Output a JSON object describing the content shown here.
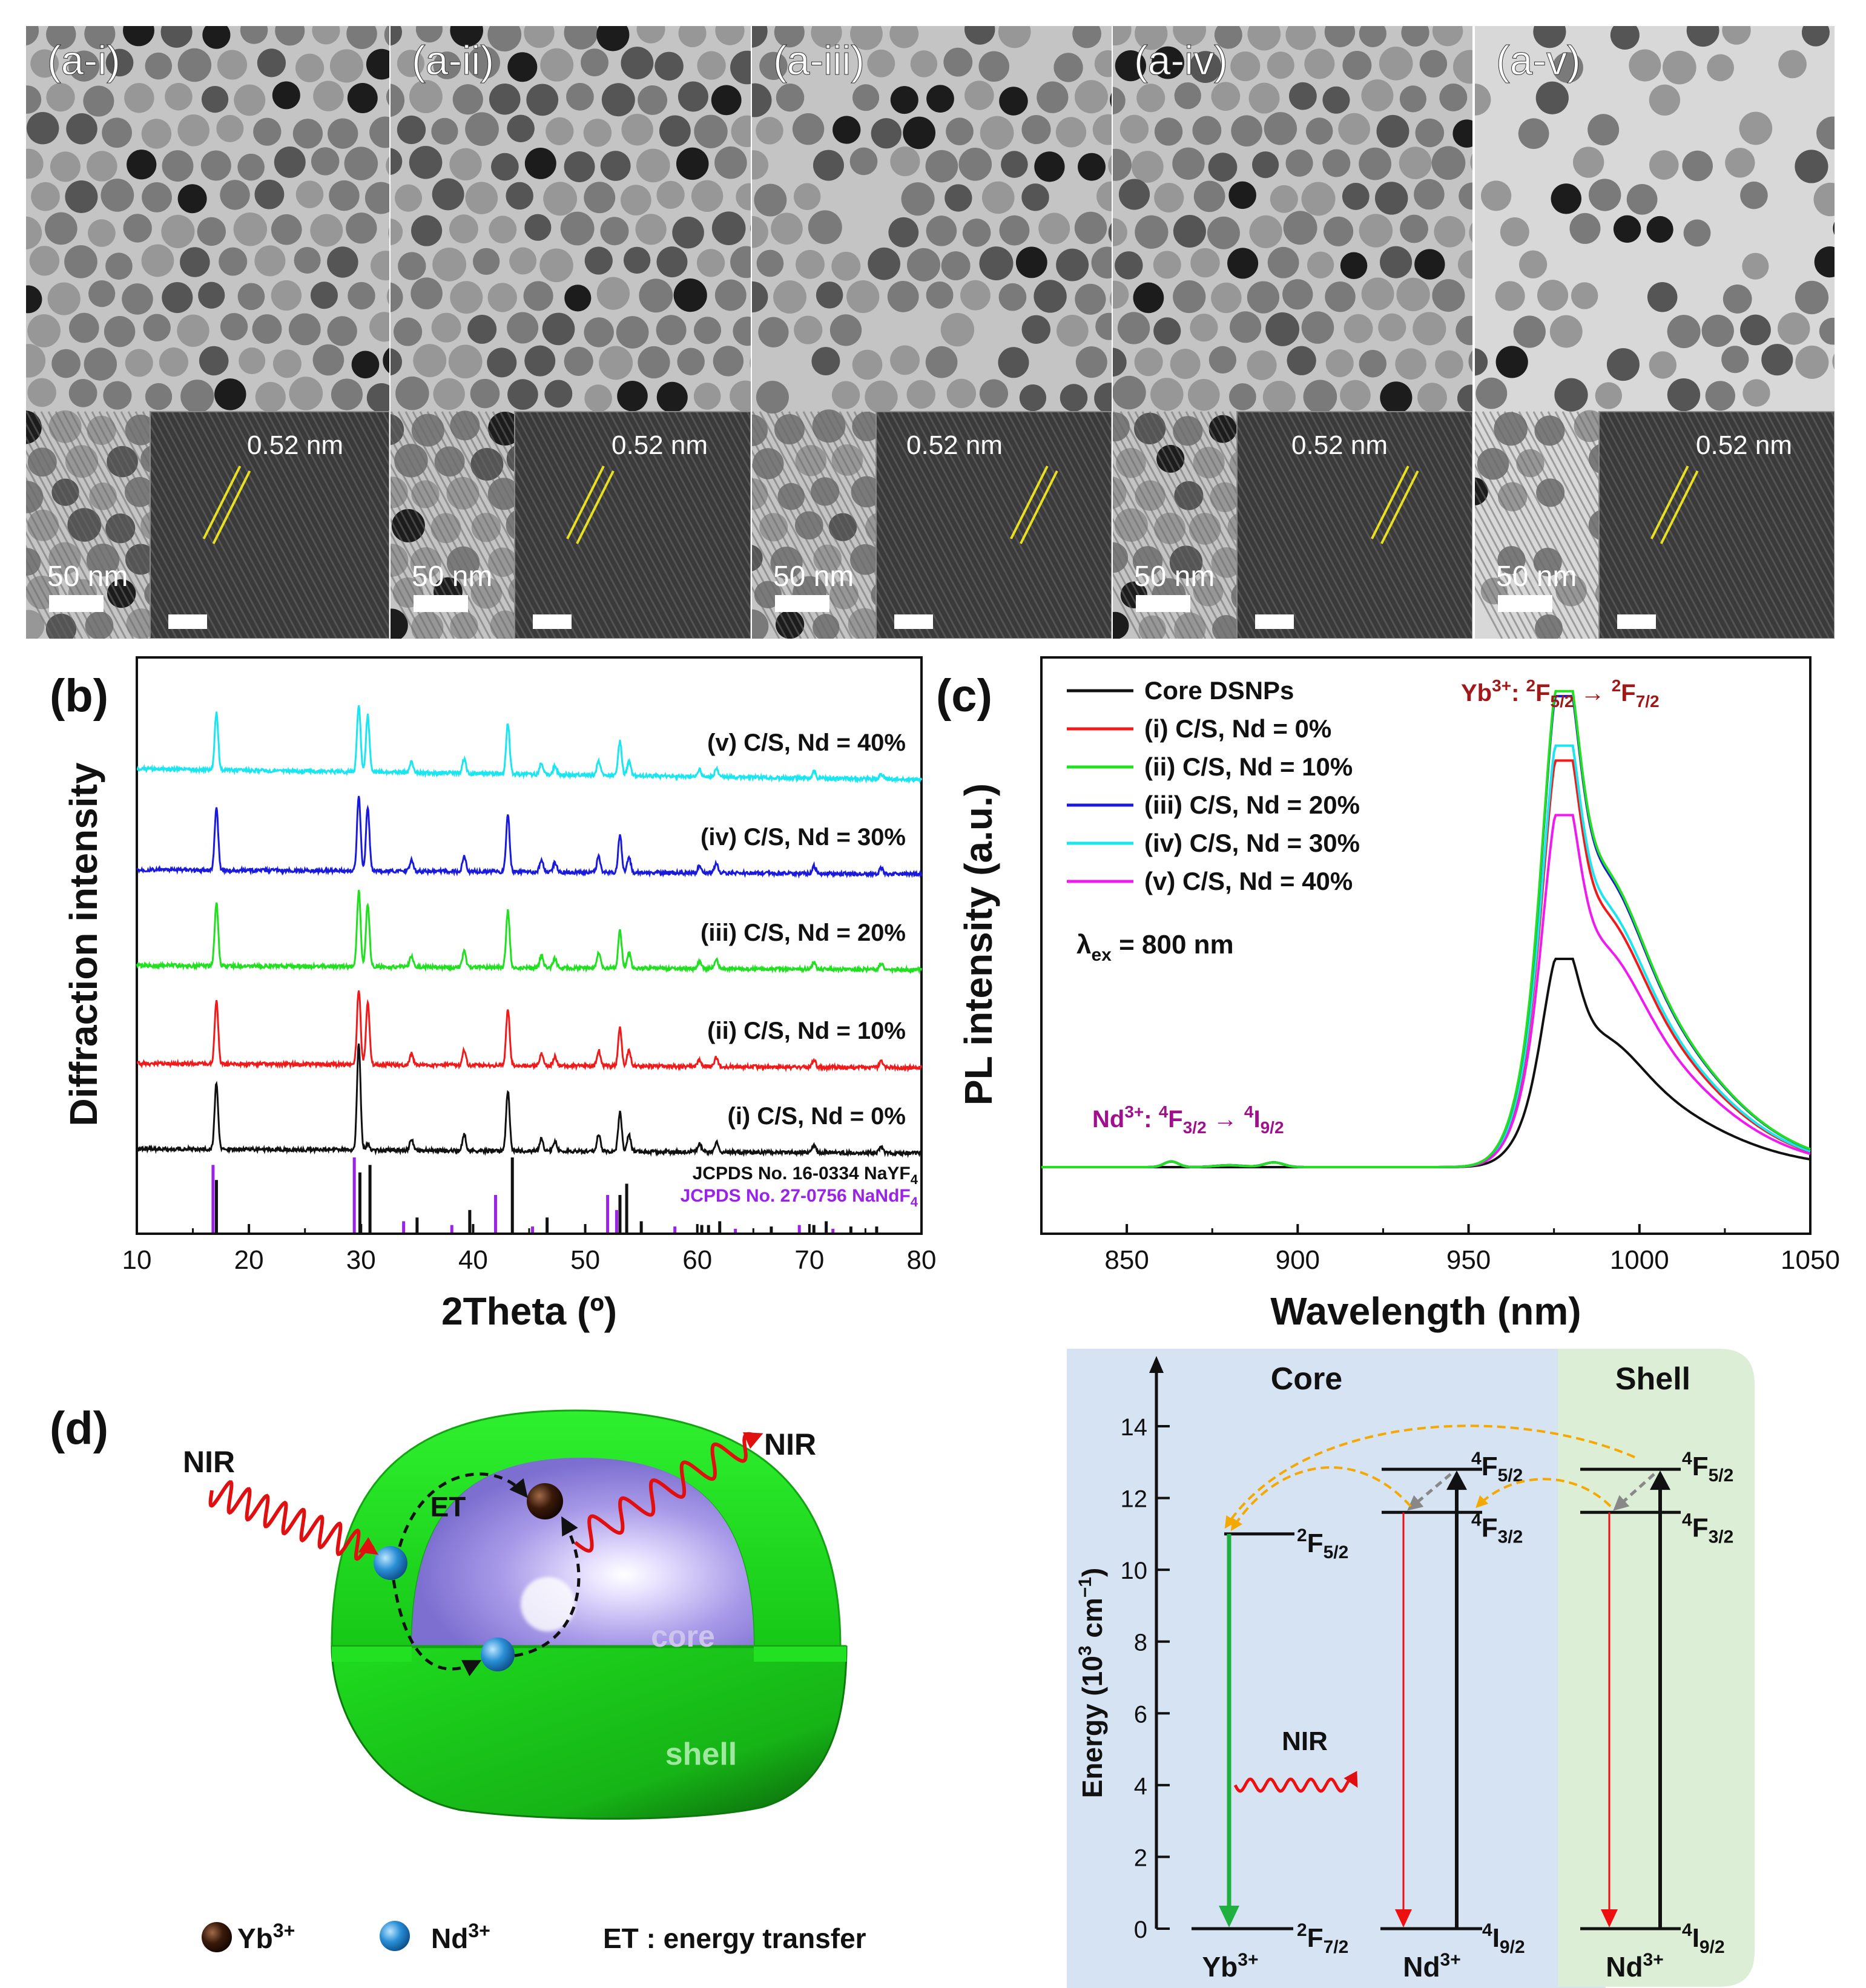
{
  "panel_a": {
    "images": [
      {
        "label": "(a-i)",
        "scale_bar": "50 nm",
        "inset_d": "0.52 nm"
      },
      {
        "label": "(a-ii)",
        "scale_bar": "50 nm",
        "inset_d": "0.52 nm"
      },
      {
        "label": "(a-iii)",
        "scale_bar": "50 nm",
        "inset_d": "0.52 nm"
      },
      {
        "label": "(a-iv)",
        "scale_bar": "50 nm",
        "inset_d": "0.52 nm"
      },
      {
        "label": "(a-v)",
        "scale_bar": "50 nm",
        "inset_d": "0.52 nm"
      }
    ]
  },
  "panel_b": {
    "label": "(b)",
    "chart_data": {
      "type": "line",
      "ylabel": "Diffraction intensity",
      "xlabel": "2Theta  (º)",
      "xlim": [
        10,
        80
      ],
      "xticks": [
        "10",
        "20",
        "30",
        "40",
        "50",
        "60",
        "70",
        "80"
      ],
      "series": [
        {
          "name": "(v) C/S, Nd = 40%",
          "color": "#19e6f0"
        },
        {
          "name": "(iv) C/S, Nd = 30%",
          "color": "#1a1adc"
        },
        {
          "name": "(iii) C/S, Nd = 20%",
          "color": "#20e020"
        },
        {
          "name": "(ii) C/S, Nd = 10%",
          "color": "#f01a1a"
        },
        {
          "name": "(i) C/S, Nd = 0%",
          "color": "#111111"
        }
      ],
      "peaks": [
        {
          "x": 17.1,
          "h": 1.0
        },
        {
          "x": 29.8,
          "h": 1.2
        },
        {
          "x": 30.6,
          "h": 1.0
        },
        {
          "x": 34.5,
          "h": 0.18
        },
        {
          "x": 39.2,
          "h": 0.25
        },
        {
          "x": 43.1,
          "h": 0.9
        },
        {
          "x": 46.1,
          "h": 0.2
        },
        {
          "x": 47.3,
          "h": 0.15
        },
        {
          "x": 51.2,
          "h": 0.25
        },
        {
          "x": 53.1,
          "h": 0.6
        },
        {
          "x": 53.9,
          "h": 0.25
        },
        {
          "x": 60.2,
          "h": 0.12
        },
        {
          "x": 61.7,
          "h": 0.15
        },
        {
          "x": 70.4,
          "h": 0.12
        },
        {
          "x": 76.4,
          "h": 0.1
        }
      ],
      "ref_naYF4": {
        "name": "JCPDS No. 16-0334 NaYF",
        "sub": "4",
        "color": "#111111",
        "x": [
          17.1,
          29.9,
          30.8,
          35.0,
          39.7,
          43.5,
          46.6,
          53.1,
          53.7,
          55.0,
          60.4,
          61.0,
          62.0,
          66.6,
          70.4,
          71.5,
          73.7,
          76.0
        ],
        "h": [
          0.7,
          0.8,
          0.9,
          0.2,
          0.3,
          1.0,
          0.2,
          0.5,
          0.65,
          0.15,
          0.1,
          0.1,
          0.15,
          0.08,
          0.1,
          0.15,
          0.08,
          0.08
        ]
      },
      "ref_naNdF4": {
        "name": "JCPDS No. 27-0756 NaNdF",
        "sub": "4",
        "color": "#9b22e8",
        "x": [
          16.8,
          29.4,
          33.8,
          38.1,
          42.0,
          45.3,
          52.0,
          52.8,
          58.0,
          63.4,
          69.1,
          72.1
        ],
        "h": [
          0.9,
          1.0,
          0.15,
          0.1,
          0.5,
          0.08,
          0.5,
          0.3,
          0.08,
          0.05,
          0.1,
          0.05
        ]
      }
    }
  },
  "panel_c": {
    "label": "(c)",
    "chart_data": {
      "type": "line",
      "ylabel": "PL intensity  (a.u.)",
      "xlabel": "Wavelength  (nm)",
      "xlim": [
        825,
        1050
      ],
      "xticks": [
        "850",
        "900",
        "950",
        "1000",
        "1050"
      ],
      "series": [
        {
          "name": "Core DSNPs",
          "color": "#111111",
          "peak": 0.42
        },
        {
          "name": "(i) C/S, Nd = 0%",
          "color": "#f01a1a",
          "peak": 0.82
        },
        {
          "name": "(ii) C/S, Nd = 10%",
          "color": "#20e020",
          "peak": 0.96
        },
        {
          "name": "(iii) C/S, Nd = 20%",
          "color": "#1a1adc",
          "peak": 0.95
        },
        {
          "name": "(iv) C/S, Nd = 30%",
          "color": "#19e6f0",
          "peak": 0.85
        },
        {
          "name": "(v) C/S, Nd = 40%",
          "color": "#f01af0",
          "peak": 0.71
        }
      ],
      "excitation": {
        "lambda": "λ",
        "sub": "ex",
        "text": " = 800 nm"
      },
      "ann_yb": {
        "ion": "Yb",
        "charge": "3+",
        "sep": ": ",
        "s1": "2",
        "t1": "F",
        "j1": "5/2",
        "arrow": " → ",
        "s2": "2",
        "t2": "F",
        "j2": "7/2",
        "color": "#a01818"
      },
      "ann_nd": {
        "ion": "Nd",
        "charge": "3+",
        "sep": ": ",
        "s1": "4",
        "t1": "F",
        "j1": "3/2",
        "arrow": " → ",
        "s2": "4",
        "t2": "I",
        "j2": "9/2",
        "color": "#a0108c"
      }
    }
  },
  "panel_d": {
    "label": "(d)",
    "nir_in": "NIR",
    "nir_out": "NIR",
    "et": "ET",
    "core": "core",
    "shell": "shell",
    "legend_yb": {
      "ion": "Yb",
      "charge": "3+"
    },
    "legend_nd": {
      "ion": "Nd",
      "charge": "3+"
    },
    "legend_et": "ET : energy transfer",
    "colors": {
      "shell": "#1fdc1f",
      "core": "#a89ae8",
      "yb": "#3a1a0a",
      "nd": "#2a8fd6"
    }
  },
  "energy": {
    "core_title": "Core",
    "shell_title": "Shell",
    "ylabel_main": "Energy (10",
    "ylabel_sup": "3",
    "ylabel_tail": " cm",
    "ylabel_sup2": "−1",
    "ylabel_end": ")",
    "ylim": [
      0,
      15
    ],
    "yticks": [
      "0",
      "2",
      "4",
      "6",
      "8",
      "10",
      "12",
      "14"
    ],
    "levels": {
      "yb_2F52": {
        "energy": 11.0,
        "s": "2",
        "t": "F",
        "j": "5/2"
      },
      "yb_2F72": {
        "energy": 0,
        "s": "2",
        "t": "F",
        "j": "7/2"
      },
      "nd_4F52": {
        "energy": 12.8,
        "s": "4",
        "t": "F",
        "j": "5/2"
      },
      "nd_4F32": {
        "energy": 11.6,
        "s": "4",
        "t": "F",
        "j": "3/2"
      },
      "nd_4I92": {
        "energy": 0,
        "s": "4",
        "t": "I",
        "j": "9/2"
      }
    },
    "ion_yb": {
      "ion": "Yb",
      "charge": "3+"
    },
    "ion_nd": {
      "ion": "Nd",
      "charge": "3+"
    },
    "nir": "NIR",
    "colors": {
      "core_bg": "#d6e3f3",
      "shell_bg": "#dcefd6"
    }
  }
}
